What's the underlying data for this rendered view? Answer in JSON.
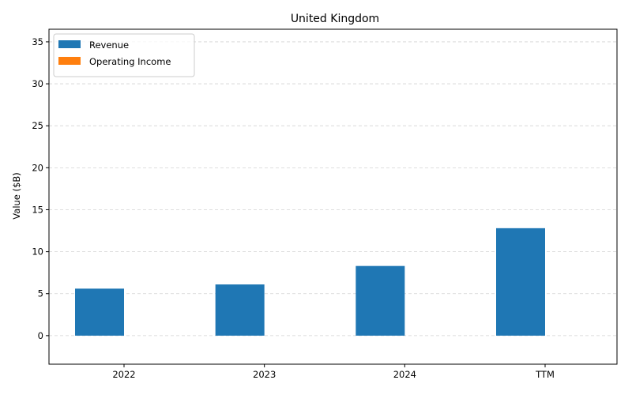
{
  "chart_data": {
    "type": "bar",
    "title": "United Kingdom",
    "xlabel": "",
    "ylabel": "Value ($B)",
    "categories": [
      "2022",
      "2023",
      "2024",
      "TTM"
    ],
    "series": [
      {
        "name": "Revenue",
        "values": [
          5.6,
          6.1,
          8.3,
          12.8
        ],
        "color": "#1f77b4"
      },
      {
        "name": "Operating Income",
        "values": [
          0,
          0,
          0,
          0
        ],
        "color": "#ff7f0e"
      }
    ],
    "ylim": [
      -3.4,
      36.5
    ],
    "yticks": [
      0,
      5,
      10,
      15,
      20,
      25,
      30,
      35
    ],
    "grid": true,
    "legend_position": "top-left"
  }
}
